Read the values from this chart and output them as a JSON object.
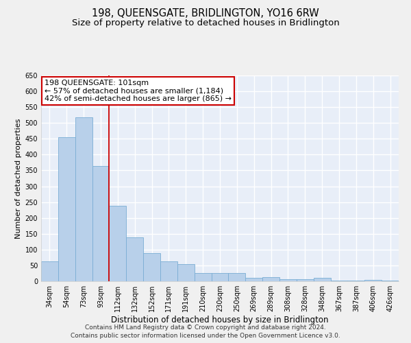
{
  "title": "198, QUEENSGATE, BRIDLINGTON, YO16 6RW",
  "subtitle": "Size of property relative to detached houses in Bridlington",
  "xlabel": "Distribution of detached houses by size in Bridlington",
  "ylabel": "Number of detached properties",
  "categories": [
    "34sqm",
    "54sqm",
    "73sqm",
    "93sqm",
    "112sqm",
    "132sqm",
    "152sqm",
    "171sqm",
    "191sqm",
    "210sqm",
    "230sqm",
    "250sqm",
    "269sqm",
    "289sqm",
    "308sqm",
    "328sqm",
    "348sqm",
    "367sqm",
    "387sqm",
    "406sqm",
    "426sqm"
  ],
  "values": [
    62,
    455,
    518,
    365,
    238,
    138,
    88,
    62,
    55,
    27,
    26,
    26,
    11,
    12,
    7,
    7,
    10,
    3,
    3,
    5,
    3
  ],
  "bar_color": "#b8d0ea",
  "bar_edge_color": "#7aadd4",
  "property_line_x": 3.5,
  "annotation_line1": "198 QUEENSGATE: 101sqm",
  "annotation_line2": "← 57% of detached houses are smaller (1,184)",
  "annotation_line3": "42% of semi-detached houses are larger (865) →",
  "annotation_box_color": "#ffffff",
  "annotation_box_edge_color": "#cc0000",
  "vline_color": "#cc0000",
  "footnote_line1": "Contains HM Land Registry data © Crown copyright and database right 2024.",
  "footnote_line2": "Contains public sector information licensed under the Open Government Licence v3.0.",
  "ylim": [
    0,
    650
  ],
  "yticks": [
    0,
    50,
    100,
    150,
    200,
    250,
    300,
    350,
    400,
    450,
    500,
    550,
    600,
    650
  ],
  "bg_color": "#e8eef8",
  "grid_color": "#ffffff",
  "title_fontsize": 10.5,
  "subtitle_fontsize": 9.5,
  "xlabel_fontsize": 8.5,
  "ylabel_fontsize": 8,
  "tick_fontsize": 7,
  "annotation_fontsize": 8,
  "footnote_fontsize": 6.5
}
